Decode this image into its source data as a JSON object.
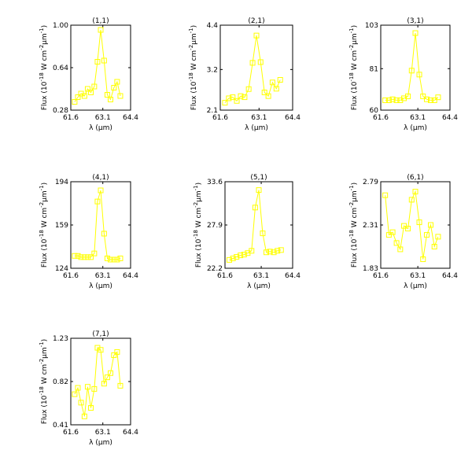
{
  "chart_data": [
    {
      "type": "line",
      "title": "(1,1)",
      "xlabel": "λ (μm)",
      "ylabel": "Flux (10^-18 W cm^-2 μm^-1)",
      "xlim": [
        61.6,
        64.4
      ],
      "ylim": [
        0.28,
        1.0
      ],
      "xticks": [
        "61.6",
        "63.1",
        "64.4"
      ],
      "yticks": [
        "0.28",
        "0.64",
        "1.00"
      ],
      "color": "#ffff00",
      "marker": "square",
      "x": [
        61.78,
        61.93,
        62.08,
        62.24,
        62.39,
        62.54,
        62.7,
        62.85,
        63.0,
        63.16,
        63.31,
        63.46,
        63.62,
        63.77,
        63.92,
        64.07
      ],
      "y": [
        0.35,
        0.39,
        0.42,
        0.4,
        0.46,
        0.43,
        0.48,
        0.69,
        0.96,
        0.7,
        0.41,
        0.37,
        0.47,
        0.52,
        0.4,
        null
      ]
    },
    {
      "type": "line",
      "title": "(2,1)",
      "xlabel": "λ (μm)",
      "ylabel": "Flux (10^-18 W cm^-2 μm^-1)",
      "xlim": [
        61.6,
        64.4
      ],
      "ylim": [
        2.1,
        4.4
      ],
      "xticks": [
        "61.6",
        "63.1",
        "64.4"
      ],
      "yticks": [
        "2.1",
        "3.2",
        "4.4"
      ],
      "color": "#ffff00",
      "marker": "square",
      "x": [
        61.78,
        61.93,
        62.08,
        62.24,
        62.39,
        62.54,
        62.7,
        62.85,
        63.0,
        63.16,
        63.31,
        63.46,
        63.62,
        63.77,
        63.92
      ],
      "y": [
        2.3,
        2.42,
        2.45,
        2.35,
        2.48,
        2.45,
        2.67,
        3.38,
        4.12,
        3.4,
        2.58,
        2.48,
        2.85,
        2.68,
        2.92
      ]
    },
    {
      "type": "line",
      "title": "(3,1)",
      "xlabel": "λ (μm)",
      "ylabel": "Flux (10^-18 W cm^-2 μm^-1)",
      "xlim": [
        61.6,
        64.4
      ],
      "ylim": [
        60,
        103
      ],
      "xticks": [
        "61.6",
        "63.1",
        "64.4"
      ],
      "yticks": [
        "60",
        "81",
        "103"
      ],
      "color": "#ffff00",
      "marker": "square",
      "x": [
        61.78,
        61.93,
        62.08,
        62.24,
        62.39,
        62.54,
        62.7,
        62.85,
        63.0,
        63.16,
        63.31,
        63.46,
        63.62,
        63.77,
        63.92
      ],
      "y": [
        65,
        65,
        65.5,
        65,
        65,
        66,
        67,
        80,
        99,
        78,
        67,
        65.5,
        65,
        65,
        66.5
      ]
    },
    {
      "type": "line",
      "title": "(4,1)",
      "xlabel": "λ (μm)",
      "ylabel": "Flux (10^-18 W cm^-2 μm^-1)",
      "xlim": [
        61.6,
        64.4
      ],
      "ylim": [
        124,
        194
      ],
      "xticks": [
        "61.6",
        "63.1",
        "64.4"
      ],
      "yticks": [
        "124",
        "159",
        "194"
      ],
      "color": "#ffff00",
      "marker": "square",
      "x": [
        61.78,
        61.93,
        62.08,
        62.24,
        62.39,
        62.54,
        62.7,
        62.85,
        63.0,
        63.16,
        63.31,
        63.46,
        63.62,
        63.77,
        63.92
      ],
      "y": [
        134,
        134,
        133,
        133,
        133,
        133,
        136,
        178,
        187,
        152,
        132,
        131,
        131,
        131,
        132
      ]
    },
    {
      "type": "line",
      "title": "(5,1)",
      "xlabel": "λ (μm)",
      "ylabel": "Flux (10^-18 W cm^-2 μm^-1)",
      "xlim": [
        61.6,
        64.4
      ],
      "ylim": [
        22.2,
        33.6
      ],
      "xticks": [
        "61.6",
        "63.1",
        "64.4"
      ],
      "yticks": [
        "22.2",
        "27.9",
        "33.6"
      ],
      "color": "#ffff00",
      "marker": "square",
      "x": [
        61.78,
        61.93,
        62.08,
        62.24,
        62.39,
        62.54,
        62.7,
        62.85,
        63.0,
        63.16,
        63.31,
        63.46,
        63.62,
        63.77,
        63.92
      ],
      "y": [
        23.3,
        23.5,
        23.7,
        23.9,
        24.0,
        24.2,
        24.5,
        30.2,
        32.5,
        26.8,
        24.3,
        24.4,
        24.3,
        24.5,
        24.6
      ]
    },
    {
      "type": "line",
      "title": "(6,1)",
      "xlabel": "λ (μm)",
      "ylabel": "Flux (10^-18 W cm^-2 μm^-1)",
      "xlim": [
        61.6,
        64.4
      ],
      "ylim": [
        1.83,
        2.79
      ],
      "xticks": [
        "61.6",
        "63.1",
        "64.4"
      ],
      "yticks": [
        "1.83",
        "2.31",
        "2.79"
      ],
      "color": "#ffff00",
      "marker": "square",
      "x": [
        61.78,
        61.93,
        62.08,
        62.24,
        62.39,
        62.54,
        62.7,
        62.85,
        63.0,
        63.16,
        63.31,
        63.46,
        63.62,
        63.77,
        63.92
      ],
      "y": [
        2.64,
        2.2,
        2.23,
        2.11,
        2.04,
        2.3,
        2.27,
        2.59,
        2.68,
        2.34,
        1.93,
        2.2,
        2.31,
        2.07,
        2.18
      ]
    },
    {
      "type": "line",
      "title": "(7,1)",
      "xlabel": "λ (μm)",
      "ylabel": "Flux (10^-18 W cm^-2 μm^-1)",
      "xlim": [
        61.6,
        64.4
      ],
      "ylim": [
        0.41,
        1.23
      ],
      "xticks": [
        "61.6",
        "63.1",
        "64.4"
      ],
      "yticks": [
        "0.41",
        "0.82",
        "1.23"
      ],
      "color": "#ffff00",
      "marker": "square",
      "x": [
        61.78,
        61.93,
        62.08,
        62.24,
        62.39,
        62.54,
        62.7,
        62.85,
        63.0,
        63.16,
        63.31,
        63.46,
        63.62,
        63.77,
        63.92
      ],
      "y": [
        0.7,
        0.76,
        0.62,
        0.49,
        0.77,
        0.57,
        0.75,
        1.14,
        1.12,
        0.8,
        0.86,
        0.9,
        1.07,
        1.1,
        0.78
      ]
    }
  ]
}
